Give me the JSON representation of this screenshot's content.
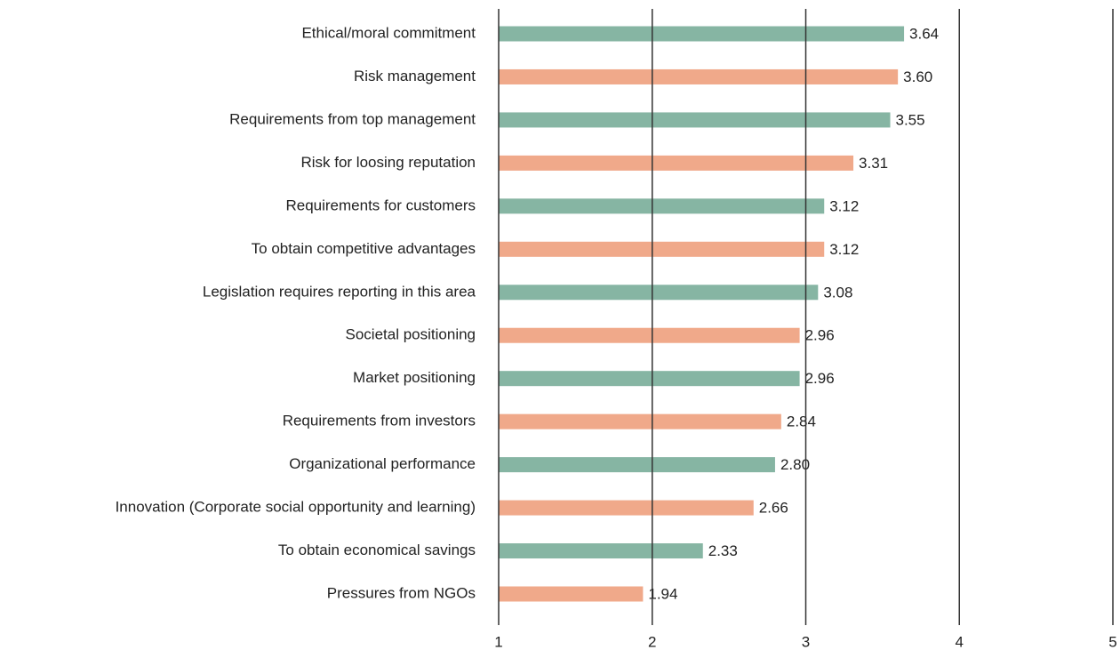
{
  "chart_data": {
    "type": "hbar",
    "categories": [
      "Ethical/moral commitment",
      "Risk management",
      "Requirements from top management",
      "Risk for loosing reputation",
      "Requirements for customers",
      "To obtain competitive advantages",
      "Legislation requires reporting in this area",
      "Societal positioning",
      "Market positioning",
      "Requirements from investors",
      "Organizational performance",
      "Innovation (Corporate social opportunity and learning)",
      "To obtain economical savings",
      "Pressures from NGOs"
    ],
    "values": [
      3.64,
      3.6,
      3.55,
      3.31,
      3.12,
      3.12,
      3.08,
      2.96,
      2.96,
      2.84,
      2.8,
      2.66,
      2.33,
      1.94
    ],
    "value_labels": [
      "3.64",
      "3.60",
      "3.55",
      "3.31",
      "3.12",
      "3.12",
      "3.08",
      "2.96",
      "2.96",
      "2.84",
      "2.80",
      "2.66",
      "2.33",
      "1.94"
    ],
    "colors": [
      "#86b5a3",
      "#f0a98a",
      "#86b5a3",
      "#f0a98a",
      "#86b5a3",
      "#f0a98a",
      "#86b5a3",
      "#f0a98a",
      "#86b5a3",
      "#f0a98a",
      "#86b5a3",
      "#f0a98a",
      "#86b5a3",
      "#f0a98a"
    ],
    "xlim": [
      1,
      5
    ],
    "xticks": [
      1,
      2,
      3,
      4,
      5
    ],
    "grid": true
  }
}
